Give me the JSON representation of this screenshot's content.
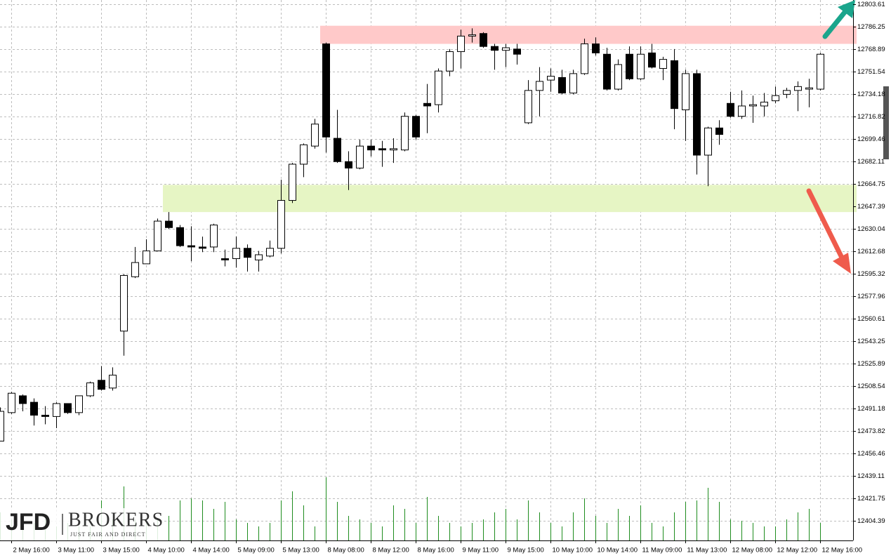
{
  "chart_data": {
    "type": "candlestick",
    "categories": [
      null,
      "2 May 16:00",
      null,
      null,
      null,
      "3 May 11:00",
      null,
      null,
      null,
      "3 May 15:00",
      null,
      null,
      null,
      "4 May 10:00",
      null,
      null,
      null,
      "4 May 14:00",
      null,
      null,
      null,
      "5 May 09:00",
      null,
      null,
      null,
      "5 May 13:00",
      null,
      null,
      null,
      "8 May 08:00",
      null,
      null,
      null,
      "8 May 12:00",
      null,
      null,
      null,
      "8 May 16:00",
      null,
      null,
      null,
      "9 May 11:00",
      null,
      null,
      null,
      "9 May 15:00",
      null,
      null,
      null,
      "10 May 10:00",
      null,
      null,
      null,
      "10 May 14:00",
      null,
      null,
      null,
      "11 May 09:00",
      null,
      null,
      null,
      "11 May 13:00",
      null,
      null,
      null,
      "12 May 08:00",
      null,
      null,
      null,
      "12 May 12:00",
      null,
      null,
      null,
      "12 May 16:00"
    ],
    "open": [
      12466,
      12488,
      12501,
      12496,
      12486,
      12485,
      12495,
      12488,
      12501,
      12513,
      12507,
      12551,
      12593,
      12603,
      12613,
      12636,
      12631,
      12617,
      12616,
      12616,
      12607,
      12607,
      12615,
      12606,
      12609,
      12615,
      12652,
      12680,
      12694,
      12773,
      12700,
      12682,
      12677,
      12694,
      12692,
      12691,
      12691,
      12717,
      12727,
      12726,
      12752,
      12767,
      12779,
      12781,
      12771,
      12768,
      12769,
      12712,
      12737,
      12745,
      12747,
      12735,
      12750,
      12773,
      12765,
      12738,
      12765,
      12746,
      12766,
      12754,
      12760,
      12722,
      12750,
      12687,
      12708,
      12727,
      12717,
      12725,
      12725,
      12729,
      12734,
      12737,
      12738,
      12738
    ],
    "high": [
      12492,
      12504,
      12502,
      12499,
      12493,
      12496,
      12495,
      12501,
      12512,
      12524,
      12523,
      12595,
      12616,
      12622,
      12638,
      12643,
      12633,
      12632,
      12624,
      12634,
      12614,
      12624,
      12618,
      12613,
      12621,
      12668,
      12681,
      12696,
      12715,
      12774,
      12722,
      12690,
      12699,
      12699,
      12698,
      12700,
      12720,
      12718,
      12742,
      12754,
      12769,
      12784,
      12785,
      12782,
      12773,
      12773,
      12773,
      12745,
      12755,
      12754,
      12753,
      12753,
      12777,
      12778,
      12770,
      12761,
      12771,
      12771,
      12773,
      12763,
      12769,
      12753,
      12753,
      12709,
      12714,
      12736,
      12737,
      12733,
      12735,
      12740,
      12739,
      12744,
      12746,
      12766
    ],
    "low": [
      12466,
      12487,
      12489,
      12478,
      12479,
      12476,
      12487,
      12486,
      12500,
      12505,
      12505,
      12532,
      12592,
      12603,
      12613,
      12630,
      12616,
      12605,
      12612,
      12612,
      12601,
      12600,
      12597,
      12597,
      12608,
      12611,
      12650,
      12670,
      12692,
      12689,
      12681,
      12660,
      12676,
      12686,
      12678,
      12681,
      12690,
      12699,
      12704,
      12720,
      12748,
      12754,
      12774,
      12770,
      12753,
      12755,
      12757,
      12711,
      12717,
      12736,
      12734,
      12734,
      12749,
      12764,
      12737,
      12737,
      12745,
      12745,
      12754,
      12745,
      12707,
      12698,
      12672,
      12663,
      12695,
      12716,
      12715,
      12712,
      12717,
      12727,
      12731,
      12721,
      12724,
      12737
    ],
    "close": [
      12489,
      12503,
      12495,
      12486,
      12485,
      12495,
      12488,
      12501,
      12511,
      12506,
      12517,
      12594,
      12604,
      12613,
      12636,
      12631,
      12617,
      12616,
      12615,
      12633,
      12606,
      12615,
      12608,
      12610,
      12615,
      12652,
      12680,
      12695,
      12711,
      12701,
      12682,
      12677,
      12694,
      12691,
      12691,
      12692,
      12717,
      12701,
      12725,
      12752,
      12767,
      12779,
      12780,
      12771,
      12768,
      12770,
      12765,
      12737,
      12744,
      12748,
      12735,
      12750,
      12773,
      12766,
      12738,
      12757,
      12746,
      12765,
      12755,
      12761,
      12723,
      12750,
      12687,
      12708,
      12703,
      12717,
      12725,
      12726,
      12728,
      12733,
      12737,
      12740,
      12739,
      12765
    ],
    "volume": [
      40,
      30,
      35,
      25,
      30,
      20,
      25,
      20,
      20,
      57,
      30,
      77,
      30,
      25,
      30,
      35,
      57,
      60,
      57,
      45,
      55,
      30,
      25,
      20,
      25,
      57,
      70,
      50,
      20,
      90,
      55,
      35,
      30,
      25,
      20,
      50,
      45,
      25,
      62,
      35,
      25,
      20,
      25,
      30,
      40,
      45,
      30,
      57,
      40,
      25,
      20,
      40,
      60,
      35,
      25,
      45,
      35,
      50,
      25,
      20,
      40,
      55,
      57,
      75,
      55,
      30,
      28,
      25,
      20,
      20,
      30,
      40,
      45,
      25
    ],
    "colors": {
      "up": "#ffffff",
      "down": "#000000",
      "volume": "#1e8c1e",
      "grid": "#bdbdbd"
    },
    "zones": [
      {
        "start": 29,
        "low": 12773,
        "high": 12787,
        "color": "#ffc9c9"
      },
      {
        "start": 15,
        "low": 12643,
        "high": 12664,
        "color": "#e6f5c4"
      }
    ],
    "ylim": [
      12389.2,
      12806.9
    ],
    "yticks": [
      12803.61,
      12786.25,
      12768.89,
      12751.54,
      12734.18,
      12716.82,
      12699.46,
      12682.11,
      12664.75,
      12647.39,
      12630.04,
      12612.68,
      12595.32,
      12577.96,
      12560.61,
      12543.25,
      12525.89,
      12508.54,
      12491.18,
      12473.82,
      12456.46,
      12439.11,
      12421.75,
      12404.39
    ],
    "grid": true
  },
  "logo": {
    "name": "JFD",
    "brand": "BROKERS",
    "tagline": "JUST FAIR AND DIRECT"
  }
}
